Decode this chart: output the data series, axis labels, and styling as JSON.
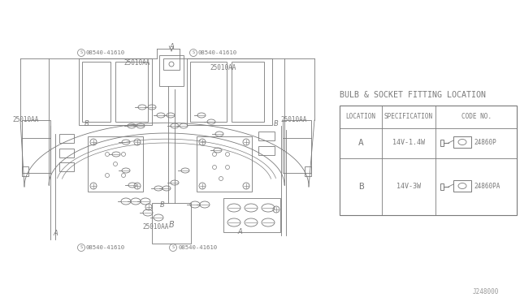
{
  "line_color": "#7a7a7a",
  "title": "BULB & SOCKET FITTING LOCATION",
  "table_headers": [
    "LOCATION",
    "SPECIFICATION",
    "CODE NO."
  ],
  "row_A": {
    "location": "A",
    "spec": "14V-1.4W",
    "code": "24860P"
  },
  "row_B": {
    "location": "B",
    "spec": "14V-3W",
    "code": "24860PA"
  },
  "watermark": "J248000"
}
